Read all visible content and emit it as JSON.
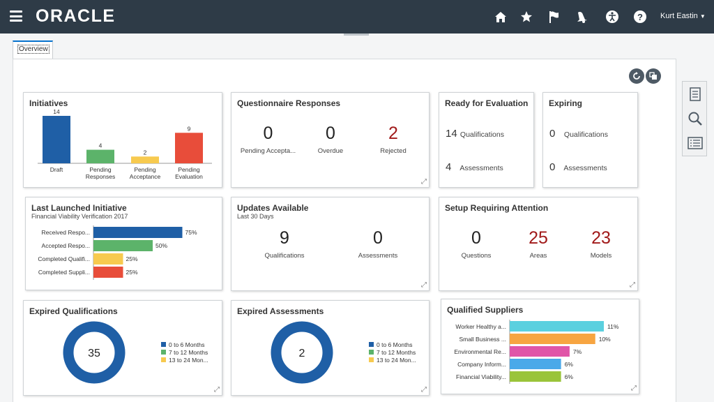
{
  "header": {
    "logo": "ORACLE",
    "user_name": "Kurt Eastin",
    "icons": [
      "home-icon",
      "favorites-star-icon",
      "notifications-flag-icon",
      "bell-icon",
      "accessibility-icon",
      "help-icon"
    ]
  },
  "tabs": [
    {
      "label": "Overview"
    }
  ],
  "cards": {
    "initiatives": {
      "title": "Initiatives",
      "chart_data": {
        "type": "bar",
        "categories": [
          "Draft",
          "Pending Responses",
          "Pending Acceptance",
          "Pending Evaluation"
        ],
        "values": [
          14,
          4,
          2,
          9
        ],
        "colors": [
          "#1f5fa6",
          "#5cb36a",
          "#f7ca4f",
          "#e84d3a"
        ]
      }
    },
    "questionnaire": {
      "title": "Questionnaire Responses",
      "metrics": [
        {
          "value": "0",
          "label": "Pending Accepta..."
        },
        {
          "value": "0",
          "label": "Overdue"
        },
        {
          "value": "2",
          "label": "Rejected"
        }
      ]
    },
    "ready": {
      "title": "Ready for Evaluation",
      "rows": [
        {
          "value": "14",
          "label": "Qualifications"
        },
        {
          "value": "4",
          "label": "Assessments"
        }
      ]
    },
    "expiring": {
      "title": "Expiring",
      "rows": [
        {
          "value": "0",
          "label": "Qualifications"
        },
        {
          "value": "0",
          "label": "Assessments"
        }
      ]
    },
    "last_launched": {
      "title": "Last Launched Initiative",
      "subtitle": "Financial Viability Verification 2017",
      "chart_data": {
        "type": "bar",
        "orientation": "horizontal",
        "categories": [
          "Received Respo...",
          "Accepted Respo...",
          "Completed Qualifi...",
          "Completed Suppli..."
        ],
        "values": [
          75,
          50,
          25,
          25
        ],
        "value_labels": [
          "75%",
          "50%",
          "25%",
          "25%"
        ],
        "colors": [
          "#1f5fa6",
          "#5cb36a",
          "#f7ca4f",
          "#e84d3a"
        ],
        "xlim": [
          0,
          100
        ]
      }
    },
    "updates": {
      "title": "Updates Available",
      "subtitle": "Last 30 Days",
      "metrics": [
        {
          "value": "9",
          "label": "Qualifications"
        },
        {
          "value": "0",
          "label": "Assessments"
        }
      ]
    },
    "setup": {
      "title": "Setup Requiring Attention",
      "metrics": [
        {
          "value": "0",
          "label": "Questions"
        },
        {
          "value": "25",
          "label": "Areas"
        },
        {
          "value": "23",
          "label": "Models"
        }
      ]
    },
    "expired_qualifications": {
      "title": "Expired Qualifications",
      "center_value": "35",
      "chart_data": {
        "type": "pie",
        "labels": [
          "0 to 6 Months",
          "7 to 12 Months",
          "13 to 24 Mon..."
        ],
        "values": [
          35,
          0,
          0
        ],
        "colors": [
          "#1f5fa6",
          "#5cb36a",
          "#f7ca4f"
        ]
      }
    },
    "expired_assessments": {
      "title": "Expired Assessments",
      "center_value": "2",
      "chart_data": {
        "type": "pie",
        "labels": [
          "0 to 6 Months",
          "7 to 12 Months",
          "13 to 24 Mon..."
        ],
        "values": [
          2,
          0,
          0
        ],
        "colors": [
          "#1f5fa6",
          "#5cb36a",
          "#f7ca4f"
        ]
      }
    },
    "qualified_suppliers": {
      "title": "Qualified Suppliers",
      "chart_data": {
        "type": "bar",
        "orientation": "horizontal",
        "categories": [
          "Worker Healthy a...",
          "Small Business ...",
          "Environmental Re...",
          "Company Inform...",
          "Financial Viability..."
        ],
        "values": [
          11,
          10,
          7,
          6,
          6
        ],
        "value_labels": [
          "11%",
          "10%",
          "7%",
          "6%",
          "6%"
        ],
        "colors": [
          "#5bd0df",
          "#f7a541",
          "#e055a8",
          "#4aa9e9",
          "#9ac43a"
        ],
        "xlim": [
          0,
          11
        ]
      }
    }
  },
  "side_panel": {
    "icons": [
      "tasks-list-icon",
      "search-icon",
      "report-list-icon"
    ]
  },
  "panel_buttons": {
    "icons": [
      "refresh-icon",
      "layout-icon"
    ]
  }
}
